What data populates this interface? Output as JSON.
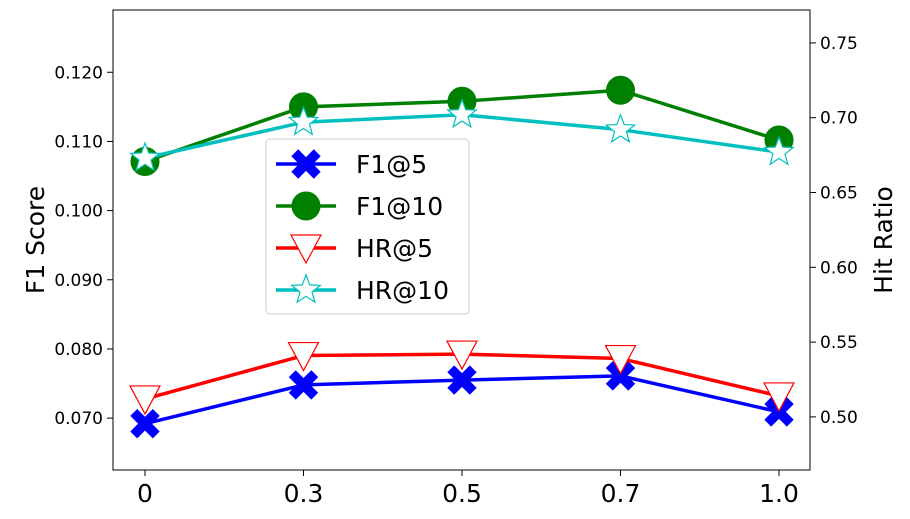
{
  "chart_data": {
    "type": "line",
    "title": "",
    "categories": [
      "0",
      "0.3",
      "0.5",
      "0.7",
      "1.0"
    ],
    "xlabel": "",
    "ylabel_left": "F1 Score",
    "ylabel_right": "Hit Ratio",
    "ylim_left": [
      0.0625,
      0.129
    ],
    "ylim_right": [
      0.4645,
      0.772
    ],
    "yticks_left": [
      0.07,
      0.08,
      0.09,
      0.1,
      0.11,
      0.12
    ],
    "yticks_left_labels": [
      "0.070",
      "0.080",
      "0.090",
      "0.100",
      "0.110",
      "0.120"
    ],
    "yticks_right": [
      0.5,
      0.55,
      0.6,
      0.65,
      0.7,
      0.75
    ],
    "yticks_right_labels": [
      "0.50",
      "0.55",
      "0.60",
      "0.65",
      "0.70",
      "0.75"
    ],
    "grid": false,
    "legend_position": "center-left",
    "series": [
      {
        "name": "F1@5",
        "axis": "left",
        "color": "#0000ff",
        "marker": "X",
        "values": [
          0.0692,
          0.0748,
          0.0755,
          0.0761,
          0.0709
        ]
      },
      {
        "name": "F1@10",
        "axis": "left",
        "color": "#008000",
        "marker": "circle",
        "values": [
          0.1071,
          0.115,
          0.1158,
          0.1174,
          0.1102
        ]
      },
      {
        "name": "HR@5",
        "axis": "right",
        "color": "#ff0000",
        "marker": "triangle-down",
        "values": [
          0.512,
          0.541,
          0.542,
          0.539,
          0.514
        ]
      },
      {
        "name": "HR@10",
        "axis": "right",
        "color": "#00bfbf",
        "marker": "star",
        "values": [
          0.673,
          0.697,
          0.702,
          0.692,
          0.677
        ]
      }
    ]
  }
}
